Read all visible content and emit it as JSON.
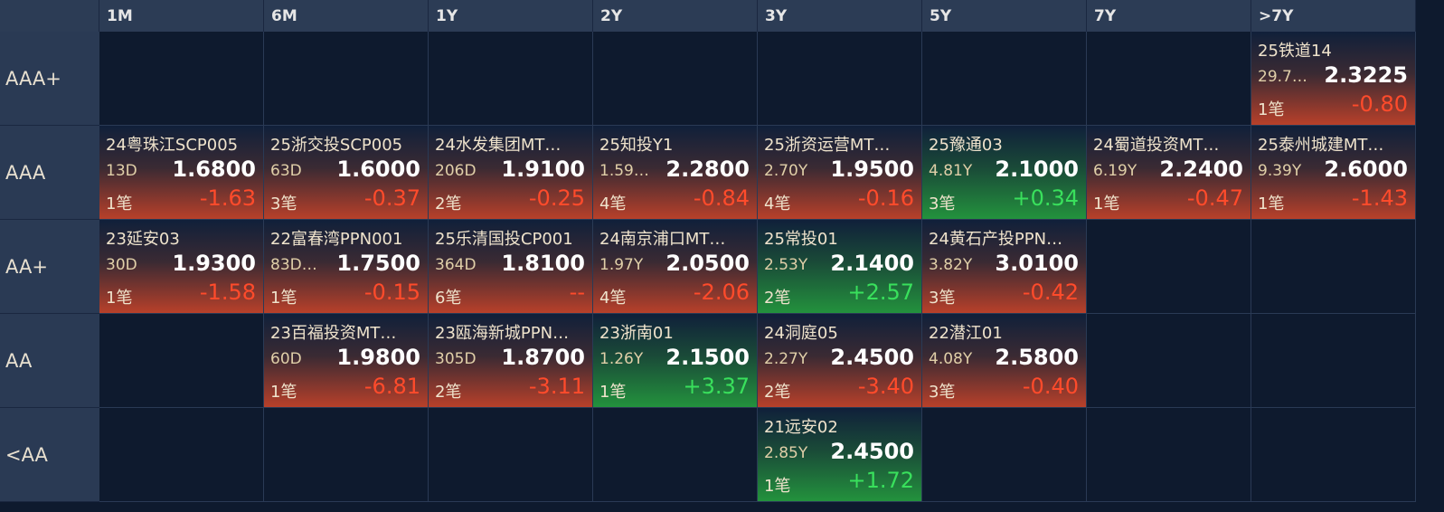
{
  "header": {
    "columns": [
      "1M",
      "6M",
      "1Y",
      "2Y",
      "3Y",
      "5Y",
      "7Y",
      ">7Y"
    ]
  },
  "rows": [
    {
      "label": "AAA+",
      "cells": [
        null,
        null,
        null,
        null,
        null,
        null,
        null,
        {
          "name": "25铁道14",
          "term": "29.7…",
          "price": "2.3225",
          "count": "1笔",
          "change": "-0.80"
        }
      ]
    },
    {
      "label": "AAA",
      "cells": [
        {
          "name": "24粤珠江SCP005",
          "term": "13D",
          "price": "1.6800",
          "count": "1笔",
          "change": "-1.63"
        },
        {
          "name": "25浙交投SCP005",
          "term": "63D",
          "price": "1.6000",
          "count": "3笔",
          "change": "-0.37"
        },
        {
          "name": "24水发集团MT…",
          "term": "206D",
          "price": "1.9100",
          "count": "2笔",
          "change": "-0.25"
        },
        {
          "name": "25知投Y1",
          "term": "1.59…",
          "price": "2.2800",
          "count": "4笔",
          "change": "-0.84"
        },
        {
          "name": "25浙资运营MT…",
          "term": "2.70Y",
          "price": "1.9500",
          "count": "4笔",
          "change": "-0.16"
        },
        {
          "name": "25豫通03",
          "term": "4.81Y",
          "price": "2.1000",
          "count": "3笔",
          "change": "+0.34"
        },
        {
          "name": "24蜀道投资MT…",
          "term": "6.19Y",
          "price": "2.2400",
          "count": "1笔",
          "change": "-0.47"
        },
        {
          "name": "25泰州城建MT…",
          "term": "9.39Y",
          "price": "2.6000",
          "count": "1笔",
          "change": "-1.43"
        }
      ]
    },
    {
      "label": "AA+",
      "cells": [
        {
          "name": "23延安03",
          "term": "30D",
          "price": "1.9300",
          "count": "1笔",
          "change": "-1.58"
        },
        {
          "name": "22富春湾PPN001",
          "term": "83D…",
          "price": "1.7500",
          "count": "1笔",
          "change": "-0.15"
        },
        {
          "name": "25乐清国投CP001",
          "term": "364D",
          "price": "1.8100",
          "count": "6笔",
          "change": "--"
        },
        {
          "name": "24南京浦口MT…",
          "term": "1.97Y",
          "price": "2.0500",
          "count": "4笔",
          "change": "-2.06"
        },
        {
          "name": "25常投01",
          "term": "2.53Y",
          "price": "2.1400",
          "count": "2笔",
          "change": "+2.57"
        },
        {
          "name": "24黄石产投PPN…",
          "term": "3.82Y",
          "price": "3.0100",
          "count": "3笔",
          "change": "-0.42"
        },
        null,
        null
      ]
    },
    {
      "label": "AA",
      "cells": [
        null,
        {
          "name": "23百福投资MT…",
          "term": "60D",
          "price": "1.9800",
          "count": "1笔",
          "change": "-6.81"
        },
        {
          "name": "23瓯海新城PPN…",
          "term": "305D",
          "price": "1.8700",
          "count": "2笔",
          "change": "-3.11"
        },
        {
          "name": "23浙南01",
          "term": "1.26Y",
          "price": "2.1500",
          "count": "1笔",
          "change": "+3.37"
        },
        {
          "name": "24洞庭05",
          "term": "2.27Y",
          "price": "2.4500",
          "count": "2笔",
          "change": "-3.40"
        },
        {
          "name": "22潜江01",
          "term": "4.08Y",
          "price": "2.5800",
          "count": "3笔",
          "change": "-0.40"
        },
        null,
        null
      ]
    },
    {
      "label": "<AA",
      "cells": [
        null,
        null,
        null,
        null,
        {
          "name": "21远安02",
          "term": "2.85Y",
          "price": "2.4500",
          "count": "1笔",
          "change": "+1.72"
        },
        null,
        null,
        null
      ]
    }
  ]
}
